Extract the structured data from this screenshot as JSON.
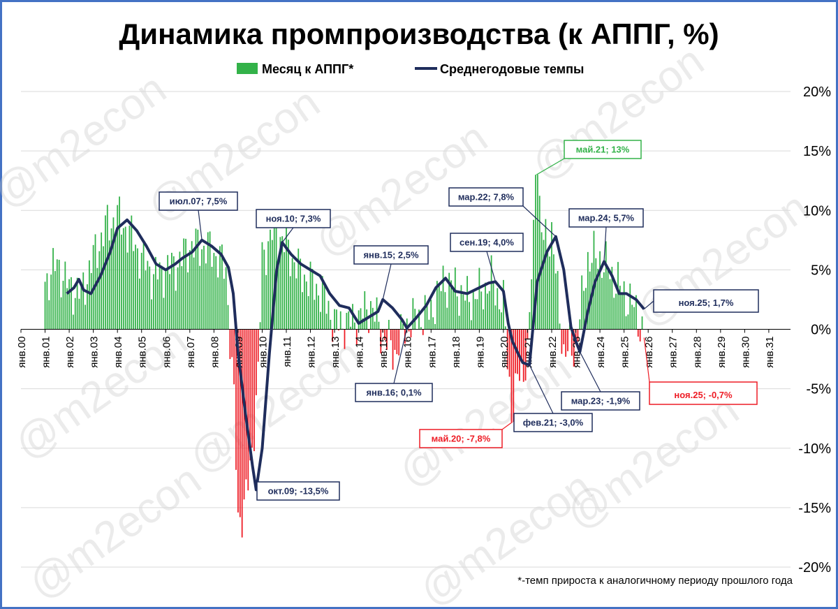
{
  "chart_data": {
    "type": "bar+line",
    "title": "Динамика промпроизводства (к АППГ, %)",
    "footnote": "*-темп прироста к аналогичному периоду прошлого года",
    "watermark": "@m2econ",
    "legend": [
      {
        "name": "Месяц к АППГ*",
        "color": "#33b249",
        "kind": "bar"
      },
      {
        "name": "Среднегодовые темпы",
        "color": "#1f2d5c",
        "kind": "line"
      }
    ],
    "ylim": [
      -20,
      20
    ],
    "yticks": [
      20,
      15,
      10,
      5,
      0,
      -5,
      -10,
      -15,
      -20
    ],
    "ytick_labels": [
      "20%",
      "15%",
      "10%",
      "5%",
      "0%",
      "-5%",
      "-10%",
      "-15%",
      "-20%"
    ],
    "x_range": [
      2000.0,
      2031.9
    ],
    "xtick_labels": [
      "янв.00",
      "янв.01",
      "янв.02",
      "янв.03",
      "янв.04",
      "янв.05",
      "янв.06",
      "янв.07",
      "янв.08",
      "янв.09",
      "янв.10",
      "янв.11",
      "янв.12",
      "янв.13",
      "янв.14",
      "янв.15",
      "янв.16",
      "янв.17",
      "янв.18",
      "янв.19",
      "янв.20",
      "янв.21",
      "янв.22",
      "янв.23",
      "янв.24",
      "янв.25",
      "янв.26",
      "янв.27",
      "янв.28",
      "янв.29",
      "янв.30",
      "янв.31"
    ],
    "bar_colors": {
      "positive": "#33b249",
      "negative": "#ee1c25"
    },
    "monthly_series": {
      "name": "Месяц к АППГ*",
      "start": "2001-01",
      "end": "2025-11",
      "note": "sampled",
      "x": [
        2001.0,
        2001.5,
        2002.0,
        2002.5,
        2003.0,
        2003.5,
        2004.0,
        2004.5,
        2005.0,
        2005.5,
        2006.0,
        2006.5,
        2007.0,
        2007.5,
        2008.0,
        2008.5,
        2008.83,
        2009.0,
        2009.25,
        2009.5,
        2009.83,
        2010.0,
        2010.5,
        2011.0,
        2011.5,
        2012.0,
        2012.5,
        2013.0,
        2013.5,
        2014.0,
        2014.5,
        2015.0,
        2015.5,
        2016.0,
        2016.5,
        2017.0,
        2017.5,
        2018.0,
        2018.5,
        2019.0,
        2019.5,
        2020.0,
        2020.37,
        2020.6,
        2021.0,
        2021.37,
        2021.6,
        2022.0,
        2022.5,
        2023.0,
        2023.5,
        2024.0,
        2024.5,
        2025.0,
        2025.5,
        2025.83
      ],
      "values": [
        4.0,
        5.5,
        3.5,
        3.0,
        6.0,
        8.5,
        9.5,
        8.0,
        6.0,
        4.5,
        5.0,
        5.5,
        7.0,
        7.0,
        6.5,
        5.0,
        -6.0,
        -16.0,
        -15.0,
        -12.0,
        -4.0,
        6.0,
        8.5,
        7.0,
        5.0,
        4.0,
        3.0,
        0.5,
        0.5,
        1.0,
        2.0,
        -0.5,
        -2.0,
        0.5,
        1.0,
        1.5,
        4.0,
        3.5,
        2.5,
        3.0,
        4.0,
        2.0,
        -7.8,
        -4.0,
        -2.5,
        13.0,
        7.5,
        8.0,
        -2.0,
        -1.5,
        6.0,
        6.0,
        4.5,
        3.0,
        1.5,
        -0.7
      ]
    },
    "avg_series": {
      "name": "Среднегодовые темпы",
      "x": [
        2001.9,
        2002.2,
        2002.4,
        2002.6,
        2002.9,
        2003.3,
        2003.7,
        2004.0,
        2004.4,
        2004.8,
        2005.2,
        2005.6,
        2006.0,
        2006.4,
        2006.7,
        2007.1,
        2007.5,
        2007.9,
        2008.3,
        2008.6,
        2008.8,
        2009.0,
        2009.3,
        2009.6,
        2009.75,
        2010.0,
        2010.3,
        2010.6,
        2010.83,
        2011.2,
        2011.6,
        2012.0,
        2012.4,
        2012.8,
        2013.2,
        2013.6,
        2014.0,
        2014.4,
        2014.8,
        2015.0,
        2015.4,
        2015.8,
        2016.0,
        2016.4,
        2016.8,
        2017.2,
        2017.6,
        2018.0,
        2018.5,
        2019.0,
        2019.4,
        2019.67,
        2020.0,
        2020.2,
        2020.37,
        2020.6,
        2020.8,
        2021.08,
        2021.4,
        2021.8,
        2022.17,
        2022.5,
        2022.8,
        2023.0,
        2023.17,
        2023.5,
        2023.8,
        2024.17,
        2024.5,
        2024.8,
        2025.1,
        2025.5,
        2025.83
      ],
      "values": [
        3.0,
        3.5,
        4.2,
        3.3,
        3.0,
        4.5,
        6.5,
        8.5,
        9.2,
        8.3,
        7.0,
        5.5,
        5.0,
        5.5,
        6.0,
        6.5,
        7.5,
        7.0,
        6.3,
        5.2,
        3.0,
        -2.0,
        -7.0,
        -11.5,
        -13.5,
        -10.0,
        -2.0,
        5.0,
        7.3,
        6.3,
        5.5,
        5.0,
        4.5,
        3.0,
        2.0,
        1.8,
        0.5,
        1.0,
        1.5,
        2.5,
        1.8,
        0.8,
        0.1,
        1.0,
        2.0,
        3.5,
        4.3,
        3.2,
        3.0,
        3.5,
        3.9,
        4.0,
        3.2,
        0.5,
        -1.0,
        -2.0,
        -2.8,
        -3.0,
        4.0,
        6.5,
        7.8,
        5.0,
        0.2,
        -1.0,
        -1.9,
        1.5,
        4.0,
        5.7,
        4.5,
        3.0,
        3.0,
        2.5,
        1.7
      ]
    },
    "annotations": [
      {
        "label": "май.21; 13%",
        "color": "green",
        "x": 2021.37,
        "y": 13.0
      },
      {
        "label": "июл.07; 7,5%",
        "color": "navy",
        "x": 2007.5,
        "y": 7.5
      },
      {
        "label": "ноя.10; 7,3%",
        "color": "navy",
        "x": 2010.83,
        "y": 7.3
      },
      {
        "label": "мар.22; 7,8%",
        "color": "navy",
        "x": 2022.17,
        "y": 7.8
      },
      {
        "label": "мар.24; 5,7%",
        "color": "navy",
        "x": 2024.17,
        "y": 5.7
      },
      {
        "label": "янв.15; 2,5%",
        "color": "navy",
        "x": 2015.0,
        "y": 2.5
      },
      {
        "label": "сен.19; 4,0%",
        "color": "navy",
        "x": 2019.67,
        "y": 4.0
      },
      {
        "label": "ноя.25; 1,7%",
        "color": "navy",
        "x": 2025.83,
        "y": 1.7
      },
      {
        "label": "янв.16; 0,1%",
        "color": "navy",
        "x": 2016.0,
        "y": 0.1
      },
      {
        "label": "мар.23; -1,9%",
        "color": "navy",
        "x": 2023.17,
        "y": -1.9
      },
      {
        "label": "фев.21; -3,0%",
        "color": "navy",
        "x": 2021.08,
        "y": -3.0
      },
      {
        "label": "май.20; -7,8%",
        "color": "red",
        "x": 2020.37,
        "y": -7.8
      },
      {
        "label": "окт.09; -13,5%",
        "color": "navy",
        "x": 2009.75,
        "y": -13.5
      },
      {
        "label": "ноя.25; -0,7%",
        "color": "red",
        "x": 2025.83,
        "y": -0.7
      }
    ]
  }
}
